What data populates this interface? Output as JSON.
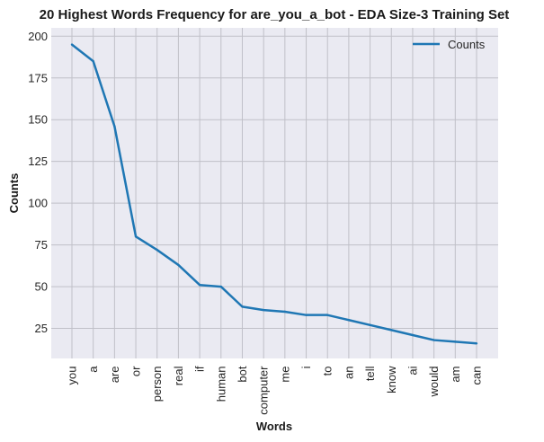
{
  "chart_data": {
    "type": "line",
    "title": "20 Highest Words Frequency for are_you_a_bot - EDA Size-3 Training Set",
    "xlabel": "Words",
    "ylabel": "Counts",
    "categories": [
      "you",
      "a",
      "are",
      "or",
      "person",
      "real",
      "if",
      "human",
      "bot",
      "computer",
      "me",
      "i",
      "to",
      "an",
      "tell",
      "know",
      "ai",
      "would",
      "am",
      "can"
    ],
    "series": [
      {
        "name": "Counts",
        "values": [
          195,
          185,
          146,
          80,
          72,
          63,
          51,
          50,
          38,
          36,
          35,
          33,
          33,
          30,
          27,
          24,
          21,
          18,
          17,
          16
        ]
      }
    ],
    "ylim": [
      7,
      205
    ],
    "yticks": [
      25,
      50,
      75,
      100,
      125,
      150,
      175,
      200
    ],
    "grid": true,
    "legend": "top-right",
    "colors": {
      "line": "#1f77b4",
      "background": "#eaeaf2",
      "grid": "#c0c0c8"
    }
  }
}
